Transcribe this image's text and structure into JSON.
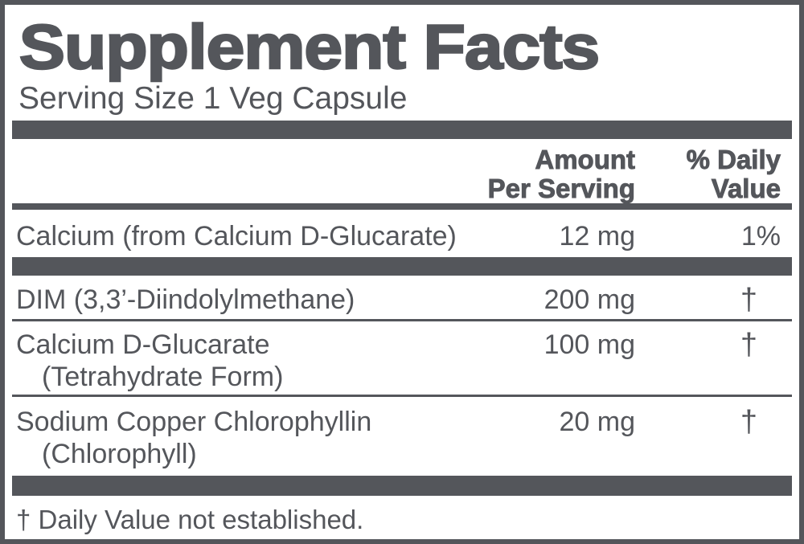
{
  "label": {
    "title": "Supplement Facts",
    "serving_size": "Serving Size 1 Veg Capsule",
    "header": {
      "amount_line1": "Amount",
      "amount_line2": "Per Serving",
      "dv_line1": "% Daily",
      "dv_line2": "Value"
    },
    "table": {
      "rows": [
        {
          "name": "Calcium (from Calcium D-Glucarate)",
          "name2": "",
          "amount": "12 mg",
          "dv": "1%"
        },
        {
          "name": "DIM (3,3’-Diindolylmethane)",
          "name2": "",
          "amount": "200 mg",
          "dv": "†"
        },
        {
          "name": "Calcium D-Glucarate",
          "name2": "(Tetrahydrate Form)",
          "amount": "100 mg",
          "dv": "†"
        },
        {
          "name": "Sodium Copper Chlorophyllin",
          "name2": "(Chlorophyll)",
          "amount": "20 mg",
          "dv": "†"
        }
      ]
    },
    "footnote": "† Daily Value not established.",
    "colors": {
      "ink": "#54565b",
      "background": "#ffffff"
    }
  }
}
